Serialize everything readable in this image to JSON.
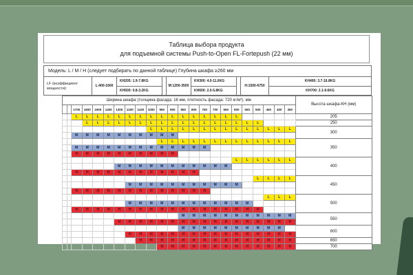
{
  "background": {
    "top_strip": "#6d8a68",
    "main": "#7f9c80",
    "corner_shape": "#35523e"
  },
  "title": {
    "line1": "Таблица выбора продукта",
    "line2": "для подъемной системы Push-to-Open FL-Fortepush (22 мм)"
  },
  "model_row": "Модель: L / M / H (следует подбирать по данной таблице) Глубина шкафа ≥260 мм",
  "lf": {
    "label": "LF (коэффициент мощности):",
    "l_range": "L:400-1600",
    "l_kh": [
      "KH205: 1.9-7.8KG",
      "KH500: 0.8-3.2KG"
    ],
    "m_range": "M:1200-3500",
    "m_kh": [
      "KH300: 4.0-11.6KG",
      "KH600: 2.0-5.8KG"
    ],
    "h_range": "H:1500-6750",
    "h_kh": [
      "KH400: 3.7-16.8KG",
      "KH700: 2.1-9.6KG"
    ]
  },
  "width_header": "Ширина шкафа (толщина фасада: 16 мм, плотность фасада: 720 кг/м³), мм",
  "height_header": "Высота шкафа-КН (мм)",
  "columns": [
    "1700",
    "1600",
    "1500",
    "1400",
    "1300",
    "1200",
    "1100",
    "1000",
    "950",
    "900",
    "850",
    "800",
    "750",
    "700",
    "650",
    "600",
    "550",
    "500",
    "450",
    "400",
    "350"
  ],
  "legend_colors": {
    "L": "#ffe90a",
    "M": "#93a9d4",
    "H": "#e42a33"
  },
  "bands": [
    {
      "height": "205",
      "rows": [
        {
          "letter": "L",
          "from": "1700",
          "to": "600"
        }
      ]
    },
    {
      "height": "250",
      "rows": [
        {
          "letter": "L",
          "from": "1600",
          "to": "500"
        }
      ]
    },
    {
      "height": "300",
      "rows": [
        {
          "letter": "L",
          "from": "1000",
          "to": "350"
        },
        {
          "letter": "M",
          "from": "1700",
          "to": "900"
        }
      ]
    },
    {
      "height": "350",
      "rows": [
        {
          "letter": "L",
          "from": "950",
          "to": "350"
        },
        {
          "letter": "M",
          "from": "1700",
          "to": "750"
        },
        {
          "letter": "H",
          "from": "1700",
          "to": "900"
        }
      ]
    },
    {
      "height": "400",
      "rows": [
        {
          "letter": "L",
          "from": "600",
          "to": "350"
        },
        {
          "letter": "M",
          "from": "1300",
          "to": "650"
        },
        {
          "letter": "H",
          "from": "1700",
          "to": "800"
        }
      ]
    },
    {
      "height": "450",
      "rows": [
        {
          "letter": "L",
          "from": "500",
          "to": "350"
        },
        {
          "letter": "M",
          "from": "1200",
          "to": "600"
        },
        {
          "letter": "H",
          "from": "1700",
          "to": "750"
        }
      ]
    },
    {
      "height": "500",
      "rows": [
        {
          "letter": "L",
          "from": "450",
          "to": "350"
        },
        {
          "letter": "M",
          "from": "1200",
          "to": "550"
        },
        {
          "letter": "H",
          "from": "1700",
          "to": "500"
        }
      ]
    },
    {
      "height": "550",
      "rows": [
        {
          "letter": "M",
          "from": "850",
          "to": "350"
        },
        {
          "letter": "H",
          "from": "1300",
          "to": "350"
        }
      ]
    },
    {
      "height": "600",
      "rows": [
        {
          "letter": "M",
          "from": "850",
          "to": "400"
        },
        {
          "letter": "H",
          "from": "1200",
          "to": "350"
        }
      ]
    },
    {
      "height": "650",
      "rows": [
        {
          "letter": "H",
          "from": "1100",
          "to": "350"
        }
      ]
    },
    {
      "height": "700",
      "rows": [
        {
          "letter": "H",
          "from": "950",
          "to": "350"
        }
      ]
    }
  ]
}
